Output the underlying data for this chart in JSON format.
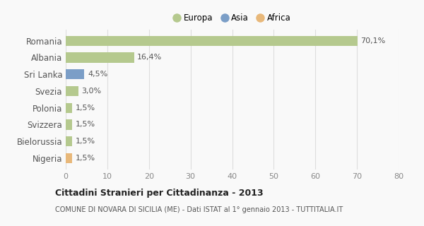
{
  "categories": [
    "Romania",
    "Albania",
    "Sri Lanka",
    "Svezia",
    "Polonia",
    "Svizzera",
    "Bielorussia",
    "Nigeria"
  ],
  "values": [
    70.1,
    16.4,
    4.5,
    3.0,
    1.5,
    1.5,
    1.5,
    1.5
  ],
  "labels": [
    "70,1%",
    "16,4%",
    "4,5%",
    "3,0%",
    "1,5%",
    "1,5%",
    "1,5%",
    "1,5%"
  ],
  "colors": [
    "#b5c98e",
    "#b5c98e",
    "#7b9ec7",
    "#b5c98e",
    "#b5c98e",
    "#b5c98e",
    "#b5c98e",
    "#e8b87a"
  ],
  "legend": [
    {
      "label": "Europa",
      "color": "#b5c98e"
    },
    {
      "label": "Asia",
      "color": "#7b9ec7"
    },
    {
      "label": "Africa",
      "color": "#e8b87a"
    }
  ],
  "xlim": [
    0,
    80
  ],
  "xticks": [
    0,
    10,
    20,
    30,
    40,
    50,
    60,
    70,
    80
  ],
  "title": "Cittadini Stranieri per Cittadinanza - 2013",
  "subtitle": "COMUNE DI NOVARA DI SICILIA (ME) - Dati ISTAT al 1° gennaio 2013 - TUTTITALIA.IT",
  "background_color": "#f9f9f9",
  "grid_color": "#dddddd",
  "bar_height": 0.6
}
